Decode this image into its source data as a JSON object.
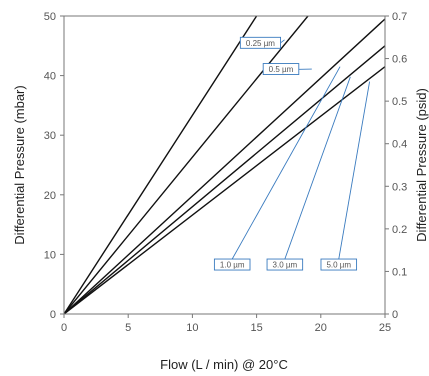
{
  "chart_data": {
    "type": "line",
    "xlabel": "Flow (L / min) @ 20°C",
    "ylabel": "Differential Pressure (mbar)",
    "y2label": "Differential Pressure (psid)",
    "xlim": [
      0,
      25
    ],
    "ylim": [
      0,
      50
    ],
    "y2lim": [
      0,
      0.7
    ],
    "xticks": [
      "0",
      "5",
      "10",
      "15",
      "20",
      "25"
    ],
    "yticks": [
      "0",
      "10",
      "20",
      "30",
      "40",
      "50"
    ],
    "y2ticks": [
      "0",
      "0.1",
      "0.2",
      "0.3",
      "0.4",
      "0.5",
      "0.6",
      "0.7"
    ],
    "grid": false,
    "series": [
      {
        "name": "0.25 µm",
        "x": [
          0,
          15
        ],
        "y": [
          0,
          50
        ]
      },
      {
        "name": "0.5 µm",
        "x": [
          0,
          19
        ],
        "y": [
          0,
          50
        ]
      },
      {
        "name": "1.0 µm",
        "x": [
          0,
          25
        ],
        "y": [
          0,
          49.5
        ]
      },
      {
        "name": "3.0 µm",
        "x": [
          0,
          25
        ],
        "y": [
          0,
          45
        ]
      },
      {
        "name": "5.0 µm",
        "x": [
          0,
          25
        ],
        "y": [
          0,
          41.5
        ]
      }
    ],
    "callouts": [
      {
        "label": "0.25 µm",
        "series": 0,
        "point": [
          15.3,
          45.5
        ],
        "box": [
          15.3,
          45.5
        ]
      },
      {
        "label": "0.5 µm",
        "series": 1,
        "point": [
          19.3,
          41.1
        ],
        "box": [
          16.9,
          41.1
        ]
      },
      {
        "label": "1.0 µm",
        "series": 2,
        "point": [
          21.5,
          41.5
        ],
        "box": [
          13.1,
          8.3
        ]
      },
      {
        "label": "3.0 µm",
        "series": 3,
        "point": [
          22.3,
          39.8
        ],
        "box": [
          17.2,
          8.3
        ]
      },
      {
        "label": "5.0 µm",
        "series": 4,
        "point": [
          23.8,
          39.0
        ],
        "box": [
          21.4,
          8.3
        ]
      }
    ]
  }
}
